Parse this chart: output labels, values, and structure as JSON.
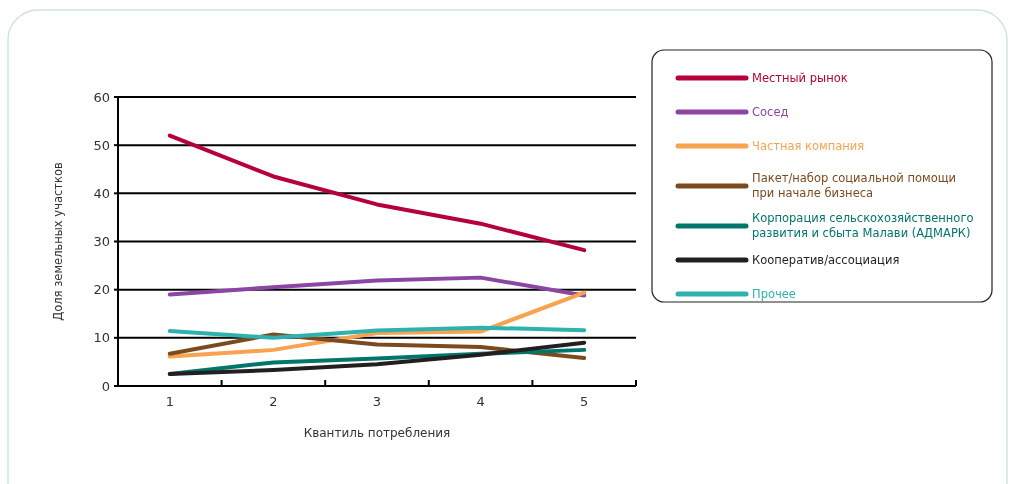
{
  "chart_data": {
    "type": "line",
    "xlabel": "Квантиль потребления",
    "ylabel": "Доля земельных участков",
    "categories": [
      "1",
      "2",
      "3",
      "4",
      "5"
    ],
    "ylim": [
      0,
      60
    ],
    "yticks": [
      0,
      10,
      20,
      30,
      40,
      50,
      60
    ],
    "grid": "y",
    "legend": "right",
    "line_style": "solid",
    "marker": "none",
    "series": [
      {
        "name": "Местный рынок",
        "color": "#b5003a",
        "values": [
          52.0,
          43.5,
          37.7,
          33.7,
          28.2
        ]
      },
      {
        "name": "Сосед",
        "color": "#8b45a3",
        "values": [
          19.0,
          20.5,
          21.9,
          22.5,
          18.8
        ]
      },
      {
        "name": "Частная компания",
        "color": "#f9a24f",
        "values": [
          6.1,
          7.5,
          11.0,
          11.3,
          19.4
        ]
      },
      {
        "name": "Пакет/набор социальной помощи при начале бизнеса",
        "color": "#7b4a1e",
        "values": [
          6.7,
          10.7,
          8.6,
          8.1,
          5.8
        ]
      },
      {
        "name": "Корпорация сельскохозяйственного развития и сбыта Малави (АДМАРК)",
        "color": "#00766b",
        "values": [
          2.5,
          4.9,
          5.7,
          6.7,
          7.5
        ]
      },
      {
        "name": "Кооператив/ассоциация",
        "color": "#231f20",
        "values": [
          2.5,
          3.3,
          4.5,
          6.5,
          9.0
        ]
      },
      {
        "name": "Прочее",
        "color": "#2db2b0",
        "values": [
          11.4,
          10.0,
          11.5,
          12.1,
          11.6
        ]
      }
    ]
  }
}
